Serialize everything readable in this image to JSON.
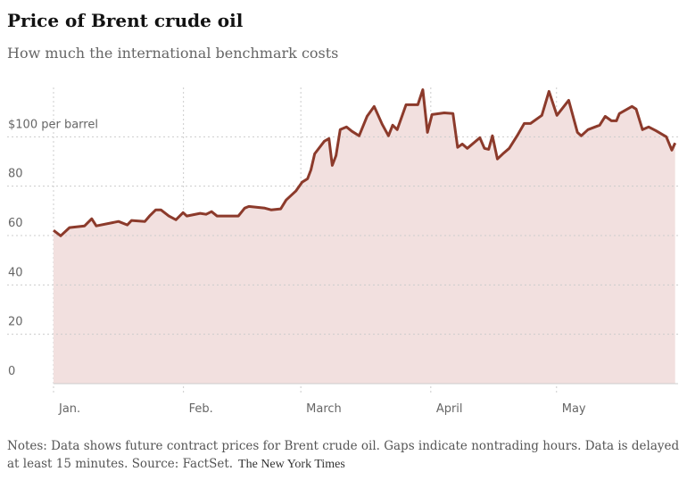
{
  "chart_data": {
    "type": "area",
    "title": "Price of Brent crude oil",
    "subtitle": "How much the international benchmark costs",
    "notes": "Notes: Data shows future contract prices for Brent crude oil. Gaps indicate nontrading hours. Data is delayed at least 15 minutes.",
    "source": "Source: FactSet.",
    "credit": "The New York Times",
    "x": [
      1.0,
      2.7,
      4.8,
      8.4,
      10.1,
      11.2,
      16.5,
      18.6,
      19.6,
      22.8,
      23.9,
      25.4,
      26.6,
      28.5,
      30.2,
      31.9,
      32.8,
      36.0,
      37.4,
      38.7,
      40.0,
      43.4,
      45.1,
      46.6,
      47.6,
      51.4,
      52.9,
      55.2,
      56.5,
      58.8,
      60.3,
      61.6,
      62.4,
      63.3,
      65.6,
      66.7,
      67.5,
      68.4,
      69.4,
      70.9,
      72.2,
      73.9,
      75.8,
      77.5,
      79.4,
      80.9,
      81.9,
      83.0,
      85.1,
      87.9,
      89.1,
      90.2,
      91.3,
      94.2,
      96.3,
      97.4,
      98.5,
      99.7,
      102.7,
      103.8,
      104.8,
      105.7,
      106.9,
      108.2,
      109.7,
      111.6,
      113.3,
      114.8,
      117.5,
      119.2,
      121.1,
      123.9,
      126.0,
      126.9,
      128.5,
      131.3,
      132.6,
      134.1,
      135.3,
      136.0,
      139.0,
      140.0,
      141.5,
      143.0,
      144.7,
      147.2,
      148.5,
      149.3
    ],
    "series": [
      {
        "name": "Brent crude",
        "color": "#8c3a2b",
        "fill": "#f2e0df",
        "values": [
          62.1,
          59.9,
          63.2,
          63.9,
          66.8,
          63.9,
          65.7,
          64.3,
          66.1,
          65.7,
          67.9,
          70.4,
          70.4,
          67.9,
          66.4,
          69.3,
          67.9,
          69.0,
          68.6,
          69.7,
          67.9,
          67.9,
          67.9,
          71.1,
          71.8,
          71.1,
          70.4,
          70.8,
          74.4,
          78.0,
          81.6,
          83.0,
          86.6,
          93.1,
          98.2,
          99.3,
          88.4,
          92.4,
          102.9,
          104.0,
          102.2,
          100.4,
          108.3,
          112.3,
          105.1,
          100.4,
          104.7,
          102.9,
          113.0,
          113.0,
          119.1,
          101.8,
          109.0,
          109.7,
          109.4,
          95.7,
          97.1,
          95.3,
          99.6,
          95.3,
          94.9,
          100.4,
          91.0,
          93.1,
          95.3,
          100.4,
          105.4,
          105.4,
          108.7,
          118.4,
          108.7,
          114.8,
          101.8,
          100.4,
          102.9,
          104.7,
          108.3,
          106.5,
          106.5,
          109.4,
          112.3,
          111.2,
          102.9,
          104.0,
          102.5,
          100.0,
          94.6,
          97.5
        ]
      }
    ],
    "xlim": [
      1,
      150
    ],
    "xticks": [
      {
        "value": 1,
        "label": "Jan."
      },
      {
        "value": 32,
        "label": "Feb."
      },
      {
        "value": 60,
        "label": "March"
      },
      {
        "value": 91,
        "label": "April"
      },
      {
        "value": 121,
        "label": "May"
      }
    ],
    "ylim": [
      0,
      120
    ],
    "yticks": [
      0,
      20,
      40,
      60,
      80,
      {
        "value": 100,
        "label": "$100 per barrel"
      }
    ],
    "grid": true
  }
}
